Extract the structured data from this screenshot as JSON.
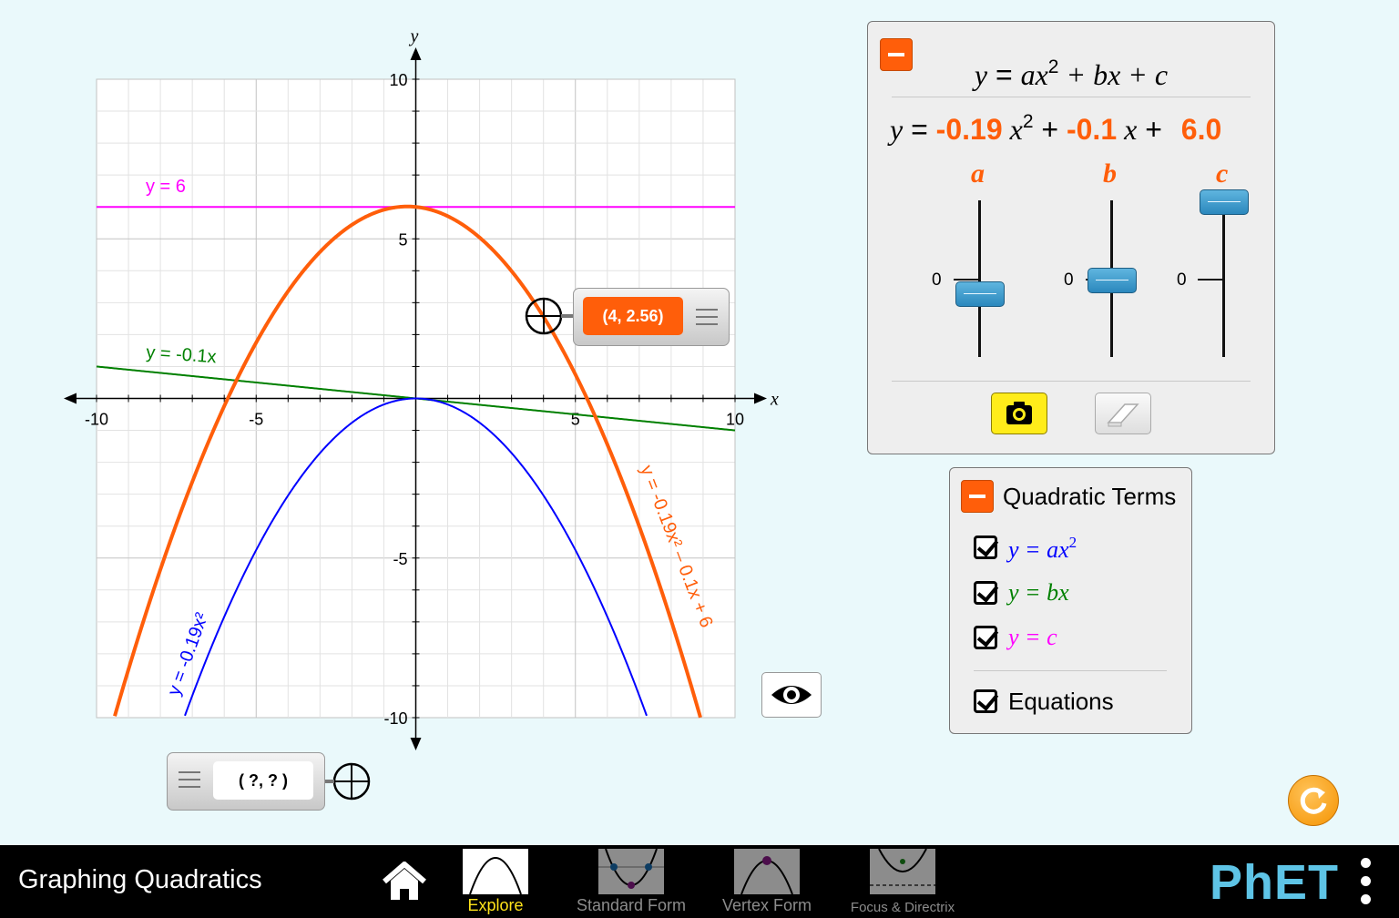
{
  "graph": {
    "x_axis_label": "x",
    "y_axis_label": "y",
    "x_ticks": [
      "-10",
      "-5",
      "5",
      "10"
    ],
    "y_ticks": [
      "10",
      "5",
      "-5",
      "-10"
    ],
    "curve_labels": {
      "constant": "y = 6",
      "linear": "y = -0.1x",
      "quadratic_term": "y = -0.19x²",
      "full": "y = -0.19x² – 0.1x + 6"
    },
    "colors": {
      "full": "#ff5e0a",
      "quadratic_term": "#0000ff",
      "linear": "#008000",
      "constant": "#ff00ff"
    },
    "coefficients": {
      "a": -0.19,
      "b": -0.1,
      "c": 6
    }
  },
  "point_tool": {
    "value": "(4, 2.56)"
  },
  "point_tool_2": {
    "value": "( ?, ? )"
  },
  "equation_panel": {
    "form": {
      "y": "y",
      "equals": " = ",
      "ax": "ax",
      "exp": "2",
      "plus_bx": " + bx + c"
    },
    "live": {
      "y": "y",
      "equals": " = ",
      "a_value": "-0.19",
      "x1": " x",
      "exp": "2",
      "plus1": " + ",
      "b_value": "-0.1",
      "x2": " x",
      "plus2": " + ",
      "c_value": "6.0"
    },
    "sliders": [
      {
        "label": "a",
        "zero_label": "0",
        "value": -0.19
      },
      {
        "label": "b",
        "zero_label": "0",
        "value": -0.1
      },
      {
        "label": "c",
        "zero_label": "0",
        "value": 6.0
      }
    ]
  },
  "terms_panel": {
    "title": "Quadratic Terms",
    "items": [
      {
        "text": "y = ax",
        "sup": "2",
        "color": "#0000ff",
        "checked": true
      },
      {
        "text": "y = bx",
        "sup": "",
        "color": "#008000",
        "checked": true
      },
      {
        "text": "y = c",
        "sup": "",
        "color": "#ff00ff",
        "checked": true
      }
    ],
    "equations_label": "Equations"
  },
  "navbar": {
    "title": "Graphing Quadratics",
    "tabs": [
      "Explore",
      "Standard Form",
      "Vertex Form",
      "Focus & Directrix"
    ],
    "logo": "PhET"
  }
}
